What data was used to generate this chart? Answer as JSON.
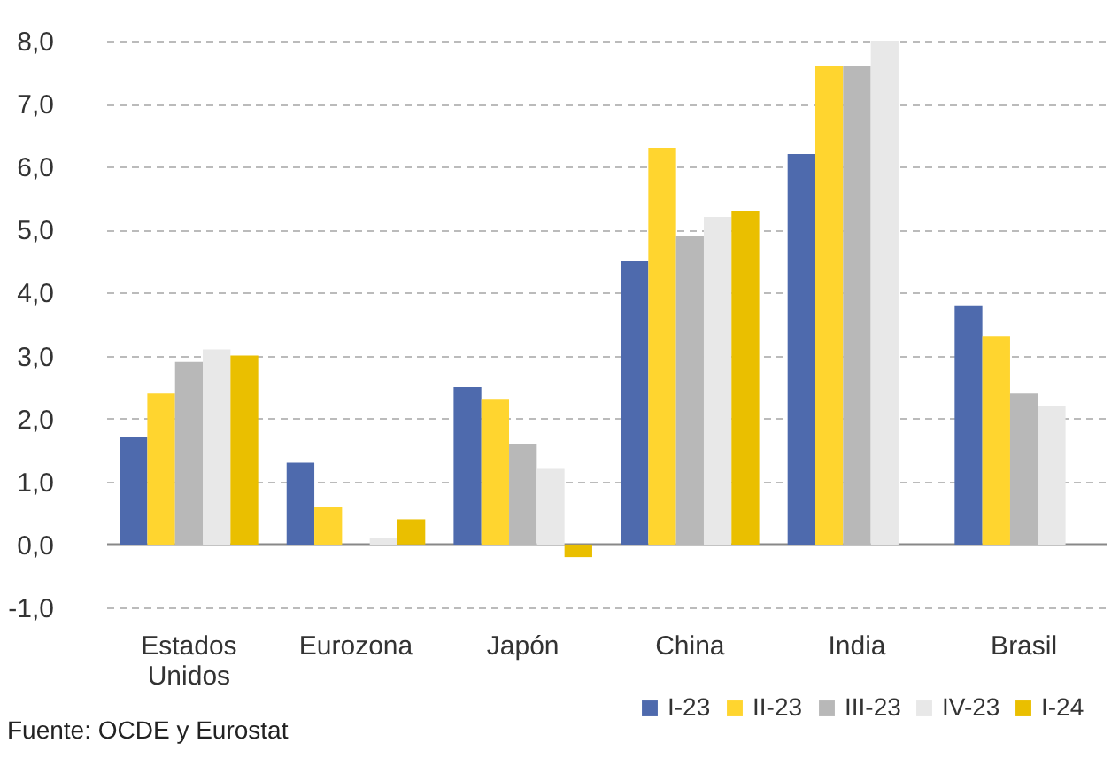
{
  "chart_data": {
    "type": "bar",
    "categories": [
      "Estados Unidos",
      "Eurozona",
      "Japón",
      "China",
      "India",
      "Brasil"
    ],
    "series": [
      {
        "name": "I-23",
        "color": "#4e6aad",
        "values": [
          1.7,
          1.3,
          2.5,
          4.5,
          6.2,
          3.8
        ]
      },
      {
        "name": "II-23",
        "color": "#ffd52f",
        "values": [
          2.4,
          0.6,
          2.3,
          6.3,
          7.6,
          3.3
        ]
      },
      {
        "name": "III-23",
        "color": "#b8b8b8",
        "values": [
          2.9,
          0.0,
          1.6,
          4.9,
          7.6,
          2.4
        ]
      },
      {
        "name": "IV-23",
        "color": "#e8e8e8",
        "values": [
          3.1,
          0.1,
          1.2,
          5.2,
          8.0,
          2.2
        ]
      },
      {
        "name": "I-24",
        "color": "#eabf00",
        "values": [
          3.0,
          0.4,
          -0.2,
          5.3,
          null,
          null
        ]
      }
    ],
    "ylim": [
      -1,
      8
    ],
    "yticks": [
      {
        "value": -1,
        "label": "-1,0"
      },
      {
        "value": 0,
        "label": "0,0"
      },
      {
        "value": 1,
        "label": "1,0"
      },
      {
        "value": 2,
        "label": "2,0"
      },
      {
        "value": 3,
        "label": "3,0"
      },
      {
        "value": 4,
        "label": "4,0"
      },
      {
        "value": 5,
        "label": "5,0"
      },
      {
        "value": 6,
        "label": "6,0"
      },
      {
        "value": 7,
        "label": "7,0"
      },
      {
        "value": 8,
        "label": "8,0"
      }
    ],
    "grid": "y",
    "legend": "bottom right",
    "annotations": [
      "Fuente: OCDE y Eurostat"
    ]
  }
}
